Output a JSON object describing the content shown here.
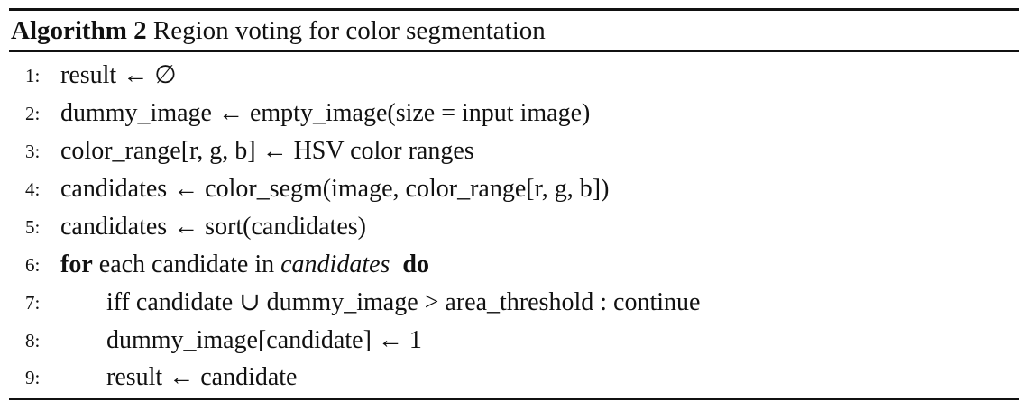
{
  "caption": {
    "label": "Algorithm 2",
    "title": "Region voting for color segmentation"
  },
  "lines": [
    {
      "number": "1:",
      "indent": 0,
      "text": "result ← ∅"
    },
    {
      "number": "2:",
      "indent": 0,
      "text": "dummy_image ← empty_image(size = input image)"
    },
    {
      "number": "3:",
      "indent": 0,
      "text": "color_range[r, g, b] ← HSV color ranges"
    },
    {
      "number": "4:",
      "indent": 0,
      "text": "candidates ← color_segm(image, color_range[r, g, b])"
    },
    {
      "number": "5:",
      "indent": 0,
      "text": "candidates ← sort(candidates)"
    },
    {
      "number": "6:",
      "indent": 0,
      "keyword_for": "for",
      "text": "each candidate in",
      "var": "candidates",
      "keyword_do": "do"
    },
    {
      "number": "7:",
      "indent": 1,
      "text": "iff candidate ∪ dummy_image > area_threshold :  continue"
    },
    {
      "number": "8:",
      "indent": 1,
      "text": "dummy_image[candidate] ← 1"
    },
    {
      "number": "9:",
      "indent": 1,
      "text": "result ← candidate"
    }
  ]
}
